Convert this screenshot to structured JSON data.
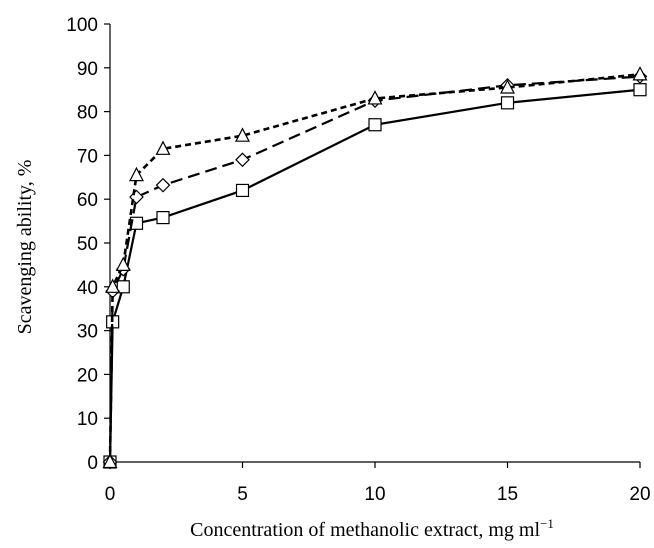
{
  "chart_data": {
    "type": "line",
    "title": "",
    "xlabel": "Concentration of methanolic extract, mg ml",
    "xlabel_sup": "−1",
    "ylabel": "Scavenging ability, %",
    "xlim": [
      0,
      20
    ],
    "ylim": [
      0,
      100
    ],
    "x_ticks": [
      0,
      5,
      10,
      15,
      20
    ],
    "y_ticks": [
      0,
      10,
      20,
      30,
      40,
      50,
      60,
      70,
      80,
      90,
      100
    ],
    "grid": false,
    "legend": "none",
    "series": [
      {
        "marker": "square",
        "line_style": "solid",
        "color": "#000000",
        "x": [
          0,
          0.1,
          0.5,
          1,
          2,
          5,
          10,
          15,
          20
        ],
        "y": [
          0,
          32,
          40,
          54.5,
          55.8,
          62,
          77,
          82,
          85
        ]
      },
      {
        "marker": "diamond",
        "line_style": "long-dash",
        "color": "#000000",
        "x": [
          0,
          0.1,
          0.5,
          1,
          2,
          5,
          10,
          15,
          20
        ],
        "y": [
          0,
          39,
          44,
          60.5,
          63.2,
          69,
          82.5,
          86,
          88
        ]
      },
      {
        "marker": "triangle",
        "line_style": "short-dash",
        "color": "#000000",
        "x": [
          0,
          0.1,
          0.5,
          1,
          2,
          5,
          10,
          15,
          20
        ],
        "y": [
          0,
          40,
          45,
          65.5,
          71.5,
          74.5,
          83,
          85.5,
          88.5
        ]
      }
    ]
  }
}
